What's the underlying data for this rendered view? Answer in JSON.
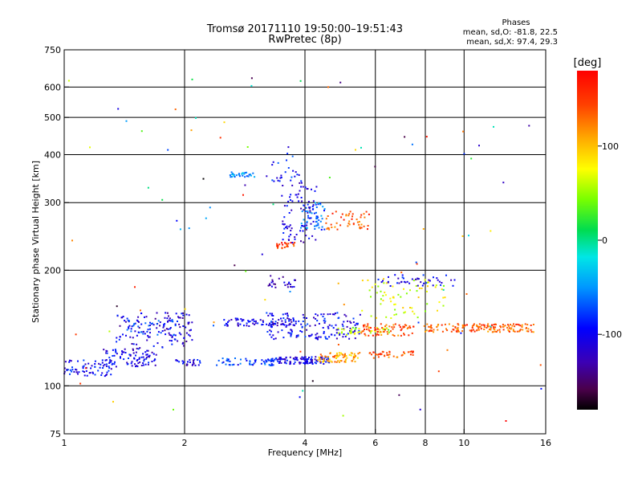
{
  "chart_data": {
    "type": "scatter",
    "title": "Tromsø 20171110 19:50:00–19:51:43",
    "subtitle": "RwPretec (8p)",
    "xlabel": "Frequency [MHz]",
    "ylabel": "Stationary phase Virtual Height [km]",
    "x_scale": "log",
    "y_scale": "log",
    "xlim": [
      1,
      16
    ],
    "ylim": [
      75,
      750
    ],
    "x_ticks": [
      {
        "value": 1,
        "label": "1"
      },
      {
        "value": 2,
        "label": "2"
      },
      {
        "value": 4,
        "label": "4"
      },
      {
        "value": 6,
        "label": "6"
      },
      {
        "value": 8,
        "label": "8"
      },
      {
        "value": 10,
        "label": "10"
      },
      {
        "value": 16,
        "label": "16"
      }
    ],
    "y_ticks": [
      {
        "value": 75,
        "label": "75"
      },
      {
        "value": 100,
        "label": "100"
      },
      {
        "value": 200,
        "label": "200"
      },
      {
        "value": 300,
        "label": "300"
      },
      {
        "value": 400,
        "label": "400"
      },
      {
        "value": 500,
        "label": "500"
      },
      {
        "value": 600,
        "label": "600"
      },
      {
        "value": 750,
        "label": "750"
      }
    ],
    "grid": true,
    "x_grid": [
      2,
      4,
      6,
      8,
      10
    ],
    "y_grid": [
      100,
      200,
      300,
      400,
      500,
      600
    ],
    "stats": {
      "heading": "Phases",
      "line_o": "mean, sd,O: -81.8, 22.5",
      "line_x": "mean, sd,X: 97.4, 29.3"
    },
    "colorbar": {
      "label": "[deg]",
      "range": [
        -180,
        180
      ],
      "ticks": [
        {
          "value": 100,
          "label": "100"
        },
        {
          "value": 0,
          "label": "0"
        },
        {
          "value": -100,
          "label": "-100"
        }
      ]
    },
    "series": [
      {
        "x_range": [
          1.0,
          1.35
        ],
        "h_range": [
          106,
          117
        ],
        "phase": -100,
        "count": 70
      },
      {
        "x_range": [
          1.25,
          1.7
        ],
        "h_range": [
          112,
          125
        ],
        "phase": -105,
        "count": 90
      },
      {
        "x_range": [
          1.35,
          2.1
        ],
        "h_range": [
          125,
          155
        ],
        "phase": -110,
        "count": 120
      },
      {
        "x_range": [
          1.4,
          1.9
        ],
        "h_range": [
          135,
          150
        ],
        "phase": -85,
        "count": 40
      },
      {
        "x_range": [
          1.9,
          2.2
        ],
        "h_range": [
          113,
          117
        ],
        "phase": -110,
        "count": 25
      },
      {
        "x_range": [
          2.4,
          3.4
        ],
        "h_range": [
          113,
          118
        ],
        "phase": -80,
        "count": 60
      },
      {
        "x_range": [
          3.4,
          4.6
        ],
        "h_range": [
          114,
          119
        ],
        "phase": -105,
        "count": 110
      },
      {
        "x_range": [
          4.3,
          5.5
        ],
        "h_range": [
          115,
          122
        ],
        "phase": 110,
        "count": 70
      },
      {
        "x_range": [
          5.8,
          7.5
        ],
        "h_range": [
          118,
          123
        ],
        "phase": 140,
        "count": 40
      },
      {
        "x_range": [
          2.5,
          3.8
        ],
        "h_range": [
          143,
          150
        ],
        "phase": -110,
        "count": 70
      },
      {
        "x_range": [
          3.2,
          5.5
        ],
        "h_range": [
          132,
          155
        ],
        "phase": -100,
        "count": 160
      },
      {
        "x_range": [
          4.8,
          6.5
        ],
        "h_range": [
          135,
          142
        ],
        "phase": 60,
        "count": 40
      },
      {
        "x_range": [
          5.5,
          7.5
        ],
        "h_range": [
          135,
          145
        ],
        "phase": 140,
        "count": 70
      },
      {
        "x_range": [
          8,
          15
        ],
        "h_range": [
          138,
          145
        ],
        "phase": 135,
        "count": 150
      },
      {
        "x_range": [
          5.5,
          9
        ],
        "h_range": [
          150,
          190
        ],
        "phase": 70,
        "count": 70
      },
      {
        "x_range": [
          6,
          9.5
        ],
        "h_range": [
          182,
          195
        ],
        "phase": -100,
        "count": 45
      },
      {
        "x_range": [
          3.5,
          4.3
        ],
        "h_range": [
          235,
          345
        ],
        "phase": -110,
        "count": 90
      },
      {
        "x_range": [
          3.9,
          4.5
        ],
        "h_range": [
          255,
          300
        ],
        "phase": -65,
        "count": 50
      },
      {
        "x_range": [
          4.5,
          5.8
        ],
        "h_range": [
          255,
          285
        ],
        "phase": 140,
        "count": 50
      },
      {
        "x_range": [
          3.2,
          3.9
        ],
        "h_range": [
          330,
          420
        ],
        "phase": -90,
        "count": 25
      },
      {
        "x_range": [
          3.4,
          3.8
        ],
        "h_range": [
          228,
          236
        ],
        "phase": 150,
        "count": 25
      },
      {
        "x_range": [
          2.6,
          3.0
        ],
        "h_range": [
          350,
          360
        ],
        "phase": -50,
        "count": 30
      },
      {
        "x_range": [
          3.2,
          3.8
        ],
        "h_range": [
          180,
          195
        ],
        "phase": -120,
        "count": 25
      },
      {
        "x_range": [
          1.0,
          16
        ],
        "h_range": [
          80,
          640
        ],
        "phase": 0,
        "count": 90
      }
    ]
  }
}
